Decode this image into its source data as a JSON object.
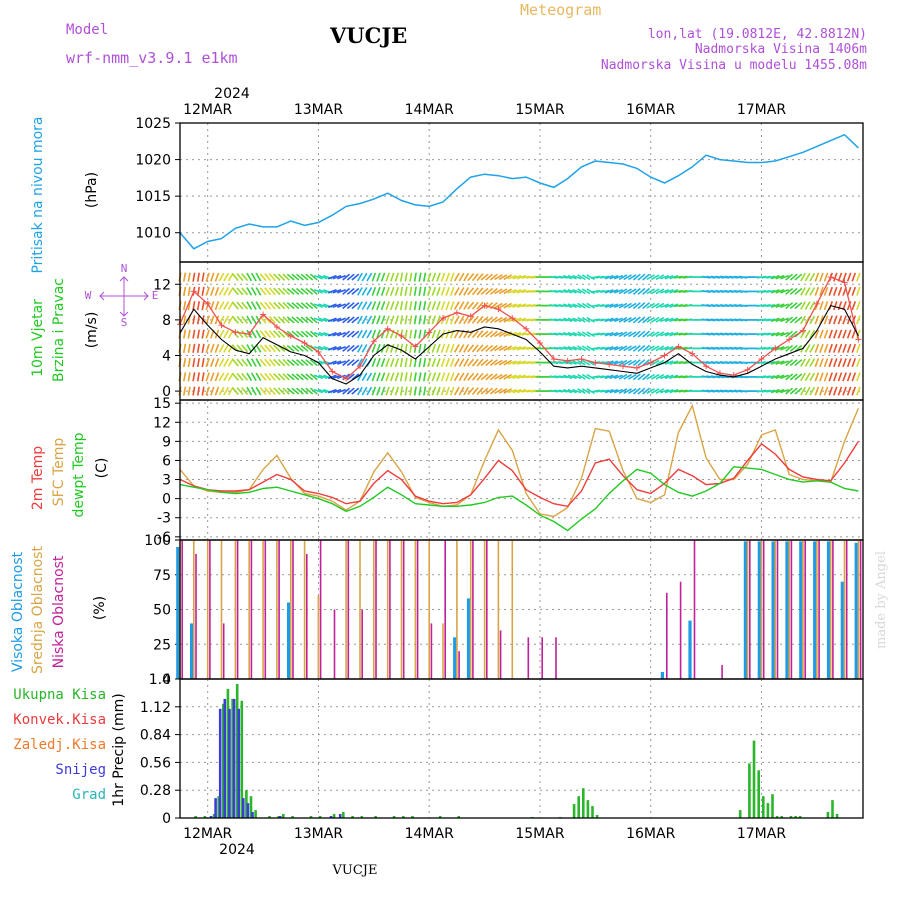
{
  "header": {
    "model_label": "Model",
    "model_name": "wrf-nmm_v3.9.1 e1km",
    "station": "VUCJE",
    "title": "Meteogram",
    "lonlat": "lon,lat (19.0812E, 42.8812N)",
    "elevation": "Nadmorska Visina 1406m",
    "model_elevation": "Nadmorska Visina u modelu 1455.08m",
    "watermark": "made by Angel",
    "footer_station": "VUCJE"
  },
  "colors": {
    "pressure": "#1fa2e8",
    "temp2m": "#f03c3c",
    "sfc_temp": "#d9a445",
    "dewpoint": "#22c922",
    "cloud_high": "#1e9be6",
    "cloud_mid": "#d9a445",
    "cloud_low": "#c0209a",
    "precip_total": "#2ab52a",
    "precip_conv": "#e83c3c",
    "precip_frozen": "#f07a2a",
    "snow": "#3c3cd8",
    "graupel": "#2ab5b5",
    "wind_speed_line": "#000000",
    "gust_line": "#f05050",
    "label_purple": "#b050d8",
    "label_gold": "#e8b860"
  },
  "chart_data": [
    {
      "type": "line",
      "ylabel_name": "Pritisak na nivou mora",
      "ylabel_unit": "(hPa)",
      "ylim": [
        1006,
        1025
      ],
      "yticks": [
        "1010",
        "1015",
        "1020",
        "1025"
      ],
      "ytick_values": [
        1010,
        1015,
        1020,
        1025
      ],
      "x_hours": [
        0,
        3,
        6,
        9,
        12,
        15,
        18,
        21,
        24,
        27,
        30,
        33,
        36,
        39,
        42,
        45,
        48,
        51,
        54,
        57,
        60,
        63,
        66,
        69,
        72,
        75,
        78,
        81,
        84,
        87,
        90,
        93,
        96,
        99,
        102,
        105,
        108,
        111,
        114,
        117,
        120,
        123,
        126,
        129,
        132,
        135,
        138,
        141,
        144,
        147
      ],
      "series": [
        {
          "key": "pressure",
          "values": [
            1010.0,
            1007.8,
            1008.8,
            1009.2,
            1010.6,
            1011.2,
            1010.8,
            1010.8,
            1011.6,
            1011.0,
            1011.4,
            1012.4,
            1013.6,
            1014.0,
            1014.6,
            1015.4,
            1014.4,
            1013.8,
            1013.6,
            1014.2,
            1016.0,
            1017.6,
            1018.0,
            1017.8,
            1017.4,
            1017.6,
            1016.8,
            1016.2,
            1017.4,
            1019.0,
            1019.8,
            1019.6,
            1019.4,
            1018.8,
            1017.6,
            1016.8,
            1017.8,
            1019.0,
            1020.6,
            1020.0,
            1019.8,
            1019.6,
            1019.6,
            1019.8,
            1020.4,
            1021.0,
            1021.8,
            1022.6,
            1023.4,
            1021.6
          ]
        }
      ]
    },
    {
      "type": "line",
      "ylabel_name1": "10m Vjetar",
      "ylabel_name2": "Brzina i Pravac",
      "ylabel_unit": "(m/s)",
      "compass_n": "N",
      "compass_e": "E",
      "compass_w": "W",
      "compass_s": "S",
      "ylim": [
        -1,
        14.5
      ],
      "yticks": [
        "0",
        "4",
        "8",
        "12"
      ],
      "ytick_values": [
        0,
        4,
        8,
        12
      ],
      "x_hours": [
        0,
        3,
        6,
        9,
        12,
        15,
        18,
        21,
        24,
        27,
        30,
        33,
        36,
        39,
        42,
        45,
        48,
        51,
        54,
        57,
        60,
        63,
        66,
        69,
        72,
        75,
        78,
        81,
        84,
        87,
        90,
        93,
        96,
        99,
        102,
        105,
        108,
        111,
        114,
        117,
        120,
        123,
        126,
        129,
        132,
        135,
        138,
        141,
        144,
        147
      ],
      "series": [
        {
          "key": "wind_speed",
          "values": [
            6.5,
            9.2,
            7.4,
            5.8,
            4.6,
            4.2,
            6.0,
            5.2,
            4.4,
            4.0,
            3.2,
            1.4,
            0.8,
            1.8,
            4.0,
            5.2,
            4.6,
            3.6,
            5.0,
            6.4,
            6.8,
            6.6,
            7.2,
            7.0,
            6.4,
            5.8,
            4.4,
            2.8,
            2.6,
            2.8,
            2.6,
            2.4,
            2.2,
            2.0,
            2.6,
            3.2,
            4.2,
            3.0,
            2.2,
            1.8,
            1.6,
            2.0,
            2.8,
            3.6,
            4.2,
            4.8,
            6.8,
            9.6,
            9.2,
            6.2
          ]
        },
        {
          "key": "gust",
          "values": [
            7.5,
            11.2,
            9.8,
            7.4,
            6.6,
            6.4,
            8.6,
            7.2,
            6.2,
            5.4,
            4.4,
            2.2,
            1.4,
            2.8,
            5.6,
            7.0,
            6.2,
            5.0,
            6.6,
            8.2,
            8.8,
            8.4,
            9.6,
            9.2,
            8.2,
            7.0,
            5.4,
            3.6,
            3.4,
            3.6,
            3.2,
            3.0,
            2.8,
            2.6,
            3.2,
            4.0,
            5.0,
            4.2,
            2.8,
            2.0,
            1.8,
            2.4,
            3.6,
            4.8,
            5.8,
            6.8,
            9.8,
            12.8,
            12.2,
            5.8
          ]
        }
      ],
      "wind_dir_deg": [
        190,
        190,
        200,
        210,
        320,
        330,
        320,
        315,
        310,
        310,
        290,
        250,
        230,
        210,
        200,
        200,
        190,
        190,
        200,
        200,
        210,
        220,
        230,
        240,
        250,
        260,
        270,
        280,
        290,
        300,
        260,
        250,
        240,
        230,
        240,
        250,
        260,
        270,
        280,
        280,
        280,
        270,
        260,
        250,
        230,
        210,
        200,
        200,
        200,
        200
      ]
    },
    {
      "type": "line",
      "ylabel_name1": "2m Temp",
      "ylabel_name2": "SFC Temp",
      "ylabel_name3": "dewpt Temp",
      "ylabel_unit": "(C)",
      "ylim": [
        -6.5,
        15.5
      ],
      "yticks": [
        "-6",
        "-3",
        "0",
        "3",
        "6",
        "9",
        "12",
        "15"
      ],
      "ytick_values": [
        -6,
        -3,
        0,
        3,
        6,
        9,
        12,
        15
      ],
      "x_hours": [
        0,
        3,
        6,
        9,
        12,
        15,
        18,
        21,
        24,
        27,
        30,
        33,
        36,
        39,
        42,
        45,
        48,
        51,
        54,
        57,
        60,
        63,
        66,
        69,
        72,
        75,
        78,
        81,
        84,
        87,
        90,
        93,
        96,
        99,
        102,
        105,
        108,
        111,
        114,
        117,
        120,
        123,
        126,
        129,
        132,
        135,
        138,
        141,
        144,
        147
      ],
      "series": [
        {
          "key": "temp2m",
          "values": [
            3.0,
            2.0,
            1.4,
            1.2,
            1.2,
            1.4,
            2.6,
            3.8,
            3.0,
            1.2,
            0.8,
            0.2,
            -0.8,
            -0.4,
            2.4,
            4.4,
            3.0,
            0.4,
            -0.4,
            -0.8,
            -0.6,
            0.6,
            3.2,
            6.0,
            4.4,
            1.4,
            0.2,
            -0.8,
            -1.2,
            1.2,
            5.6,
            6.2,
            3.6,
            1.4,
            0.8,
            2.4,
            4.6,
            3.6,
            2.2,
            2.4,
            3.2,
            6.0,
            8.6,
            7.0,
            4.6,
            3.4,
            3.0,
            2.8,
            5.6,
            9.0
          ]
        },
        {
          "key": "sfc_temp",
          "values": [
            4.6,
            2.0,
            1.2,
            1.0,
            1.0,
            1.4,
            4.6,
            6.8,
            3.2,
            0.8,
            0.4,
            -0.4,
            -1.8,
            -0.4,
            4.2,
            7.2,
            4.2,
            0.2,
            -0.6,
            -1.2,
            -1.0,
            0.6,
            6.0,
            10.8,
            7.6,
            0.8,
            -2.4,
            -2.8,
            -1.4,
            3.2,
            11.0,
            10.6,
            4.4,
            0.0,
            -0.6,
            0.6,
            10.4,
            14.6,
            6.4,
            3.0,
            3.0,
            5.4,
            10.0,
            10.8,
            3.8,
            3.0,
            2.8,
            2.6,
            9.0,
            14.2
          ]
        },
        {
          "key": "dewpoint",
          "values": [
            2.2,
            1.8,
            1.4,
            1.0,
            0.8,
            1.0,
            1.6,
            1.8,
            1.2,
            0.6,
            0.0,
            -0.8,
            -2.0,
            -1.2,
            0.2,
            1.8,
            0.6,
            -0.8,
            -1.0,
            -1.2,
            -1.2,
            -1.0,
            -0.6,
            0.2,
            0.4,
            -1.0,
            -2.6,
            -3.6,
            -5.0,
            -3.2,
            -1.6,
            0.8,
            2.8,
            4.6,
            4.0,
            2.2,
            1.0,
            0.4,
            1.2,
            2.4,
            5.0,
            4.8,
            4.6,
            3.8,
            3.0,
            2.6,
            2.8,
            2.6,
            1.6,
            1.2
          ]
        }
      ]
    },
    {
      "type": "bar",
      "ylabel_name1": "Visoka Oblacnost",
      "ylabel_name2": "Srednja Oblacnost",
      "ylabel_name3": "Niska Oblacnost",
      "ylabel_unit": "(%)",
      "ylim": [
        0,
        100
      ],
      "yticks": [
        "0",
        "25",
        "50",
        "75",
        "100"
      ],
      "ytick_values": [
        0,
        25,
        50,
        75,
        100
      ],
      "x_hours": [
        0,
        3,
        6,
        9,
        12,
        15,
        18,
        21,
        24,
        27,
        30,
        33,
        36,
        39,
        42,
        45,
        48,
        51,
        54,
        57,
        60,
        63,
        66,
        69,
        72,
        75,
        78,
        81,
        84,
        87,
        90,
        93,
        96,
        99,
        102,
        105,
        108,
        111,
        114,
        117,
        120,
        123,
        126,
        129,
        132,
        135,
        138,
        141,
        144,
        147
      ],
      "series": [
        {
          "key": "cloud_high",
          "values": [
            95,
            40,
            0,
            0,
            0,
            0,
            0,
            0,
            55,
            0,
            0,
            0,
            0,
            0,
            0,
            0,
            0,
            0,
            0,
            0,
            30,
            58,
            0,
            0,
            0,
            0,
            0,
            0,
            0,
            0,
            0,
            0,
            0,
            0,
            0,
            5,
            0,
            42,
            0,
            0,
            0,
            99,
            99,
            99,
            99,
            99,
            99,
            99,
            70,
            98
          ]
        },
        {
          "key": "cloud_mid",
          "values": [
            100,
            100,
            100,
            100,
            100,
            100,
            100,
            100,
            100,
            100,
            60,
            0,
            100,
            100,
            100,
            100,
            100,
            100,
            100,
            40,
            100,
            100,
            100,
            100,
            100,
            0,
            0,
            0,
            0,
            0,
            0,
            0,
            0,
            0,
            0,
            0,
            0,
            0,
            0,
            0,
            0,
            100,
            100,
            100,
            100,
            100,
            100,
            100,
            100,
            100
          ]
        },
        {
          "key": "cloud_low",
          "values": [
            100,
            90,
            100,
            40,
            100,
            100,
            100,
            100,
            100,
            90,
            100,
            50,
            100,
            50,
            100,
            100,
            100,
            100,
            40,
            100,
            20,
            100,
            100,
            35,
            0,
            30,
            30,
            30,
            0,
            0,
            0,
            0,
            0,
            0,
            0,
            62,
            70,
            100,
            0,
            10,
            0,
            100,
            100,
            100,
            100,
            100,
            100,
            100,
            100,
            100
          ]
        }
      ]
    },
    {
      "type": "bar",
      "legend": [
        "Ukupna Kisa",
        "Konvek.Kisa",
        "Zaledj.Kisa",
        "Snijeg",
        "Grad"
      ],
      "ylabel": "1hr Precip (mm)",
      "ylim": [
        0,
        1.4
      ],
      "yticks": [
        "0",
        "0.28",
        "0.56",
        "0.84",
        "1.12",
        "1.4"
      ],
      "ytick_values": [
        0,
        0.28,
        0.56,
        0.84,
        1.12,
        1.4
      ],
      "x_hours": [
        3,
        5,
        7,
        8,
        9,
        10,
        11,
        12,
        13,
        14,
        15,
        16,
        19,
        21,
        22,
        24,
        28,
        30,
        33,
        35,
        37,
        39,
        42,
        46,
        48,
        50,
        56,
        60,
        76,
        82,
        85,
        86,
        87,
        88,
        89,
        90,
        121,
        123,
        124,
        125,
        126,
        127,
        128,
        129,
        130,
        132,
        133,
        134,
        140,
        141,
        142
      ],
      "series": [
        {
          "key": "precip_total",
          "values": [
            0.02,
            0.02,
            0.04,
            0.22,
            1.15,
            1.3,
            1.2,
            1.35,
            1.18,
            0.28,
            0.22,
            0.08,
            0.02,
            0.02,
            0.04,
            0.02,
            0.02,
            0.02,
            0.04,
            0.06,
            0.02,
            0.02,
            0.02,
            0.02,
            0.02,
            0.02,
            0.02,
            0.02,
            0.01,
            0.01,
            0.14,
            0.22,
            0.3,
            0.18,
            0.12,
            0.03,
            0.08,
            0.55,
            0.78,
            0.48,
            0.22,
            0.15,
            0.24,
            0.02,
            0.02,
            0.02,
            0.02,
            0.02,
            0.06,
            0.18,
            0.04
          ]
        },
        {
          "key": "snow",
          "values": [
            0.0,
            0.0,
            0.02,
            0.2,
            1.1,
            1.2,
            1.1,
            1.2,
            1.1,
            0.2,
            0.15,
            0.06,
            0.0,
            0.0,
            0.02,
            0.0,
            0.0,
            0.0,
            0.02,
            0.04,
            0.0,
            0.0,
            0.0,
            0.0,
            0.0,
            0.0,
            0.0,
            0.0,
            0.0,
            0.0,
            0.0,
            0.0,
            0.0,
            0.0,
            0.0,
            0.0,
            0.0,
            0.0,
            0.0,
            0.0,
            0.0,
            0.0,
            0.0,
            0.0,
            0.0,
            0.0,
            0.0,
            0.0,
            0.0,
            0.0,
            0.0
          ]
        }
      ]
    }
  ],
  "axes": {
    "top_year": "2024",
    "bottom_year": "2024",
    "x_labels": [
      "12MAR",
      "13MAR",
      "14MAR",
      "15MAR",
      "16MAR",
      "17MAR"
    ],
    "x_label_hours": [
      6,
      30,
      54,
      78,
      102,
      126
    ],
    "x_range_hours": [
      0,
      148
    ]
  }
}
